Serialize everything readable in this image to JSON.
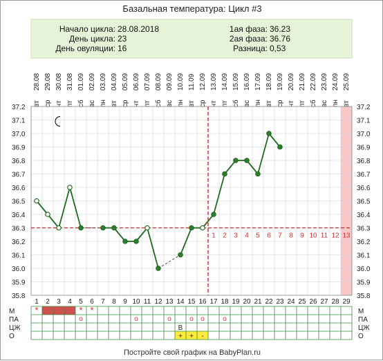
{
  "chart_data": {
    "type": "line",
    "title": "Базальная температура: Цикл #3",
    "info": {
      "left": [
        {
          "label": "Начало цикла:",
          "value": "28.08.2018"
        },
        {
          "label": "День цикла:",
          "value": "23"
        },
        {
          "label": "День овуляции:",
          "value": "16"
        }
      ],
      "right": [
        {
          "label": "1ая фаза:",
          "value": "36.23"
        },
        {
          "label": "2ая фаза:",
          "value": "36.76"
        },
        {
          "label": "Разница:",
          "value": "0,53"
        }
      ]
    },
    "dates": [
      "28.08",
      "29.08",
      "30.08",
      "31.08",
      "01.09",
      "02.09",
      "03.09",
      "04.09",
      "05.09",
      "06.09",
      "07.09",
      "08.09",
      "09.09",
      "10.09",
      "11.09",
      "12.09",
      "13.09",
      "14.09",
      "15.09",
      "16.09",
      "17.09",
      "18.09",
      "19.09",
      "20.09",
      "21.09",
      "22.09",
      "23.09",
      "24.09",
      "25.09"
    ],
    "weekdays": [
      "вт",
      "ср",
      "чт",
      "пт",
      "сб",
      "вс",
      "пн",
      "вт",
      "ср",
      "чт",
      "пт",
      "сб",
      "вс",
      "пн",
      "вт",
      "ср",
      "чт",
      "пт",
      "сб",
      "вс",
      "пн",
      "вт",
      "ср",
      "чт",
      "пт",
      "сб",
      "вс",
      "пн",
      "вт"
    ],
    "days": [
      "1",
      "2",
      "3",
      "4",
      "5",
      "6",
      "7",
      "8",
      "9",
      "10",
      "11",
      "12",
      "13",
      "14",
      "15",
      "16",
      "17",
      "18",
      "19",
      "20",
      "21",
      "22",
      "23",
      "24",
      "25",
      "26",
      "27",
      "28",
      "29"
    ],
    "y_ticks": [
      "37.2",
      "37.1",
      "37.0",
      "36.9",
      "36.8",
      "36.7",
      "36.6",
      "36.5",
      "36.4",
      "36.3",
      "36.2",
      "36.1",
      "36.0",
      "35.9",
      "35.8"
    ],
    "ylim": [
      35.8,
      37.2
    ],
    "temperatures": [
      {
        "day": 1,
        "t": 36.5,
        "open": true
      },
      {
        "day": 2,
        "t": 36.4,
        "open": true
      },
      {
        "day": 3,
        "t": 36.3,
        "open": true
      },
      {
        "day": 4,
        "t": 36.6,
        "open": true
      },
      {
        "day": 5,
        "t": 36.3,
        "open": false
      },
      {
        "day": 7,
        "t": 36.3,
        "open": false
      },
      {
        "day": 8,
        "t": 36.3,
        "open": false
      },
      {
        "day": 9,
        "t": 36.2,
        "open": false
      },
      {
        "day": 10,
        "t": 36.2,
        "open": false
      },
      {
        "day": 11,
        "t": 36.3,
        "open": true
      },
      {
        "day": 12,
        "t": 36.0,
        "open": false
      },
      {
        "day": 14,
        "t": 36.1,
        "open": false
      },
      {
        "day": 15,
        "t": 36.3,
        "open": false
      },
      {
        "day": 16,
        "t": 36.3,
        "open": true
      },
      {
        "day": 17,
        "t": 36.4,
        "open": false
      },
      {
        "day": 18,
        "t": 36.7,
        "open": false
      },
      {
        "day": 19,
        "t": 36.8,
        "open": false
      },
      {
        "day": 20,
        "t": 36.8,
        "open": false
      },
      {
        "day": 21,
        "t": 36.7,
        "open": false
      },
      {
        "day": 22,
        "t": 37.0,
        "open": false
      },
      {
        "day": 23,
        "t": 36.9,
        "open": false
      }
    ],
    "gap_after_days": [
      5,
      12
    ],
    "coverline": 36.3,
    "ovulation_day": 16,
    "highlight_day": 29,
    "post_ovulation_numbers": [
      "1",
      "2",
      "3",
      "4",
      "5",
      "6",
      "7",
      "8",
      "9",
      "10",
      "11",
      "12",
      "13"
    ],
    "moon_day": 3,
    "moon_temp": 37.1,
    "rows": {
      "labels": [
        "М",
        "ПА",
        "ЦЖ",
        "О"
      ],
      "m_fill_days": [
        2,
        3,
        4
      ],
      "m_star_days": [
        1,
        5,
        6
      ],
      "pa_marks": {
        "days": [
          5,
          10,
          13,
          15,
          16,
          18
        ],
        "symbol": "o"
      },
      "cj_marks": [
        {
          "day": 14,
          "text": "В"
        }
      ],
      "o_marks": [
        {
          "day": 14,
          "text": "+"
        },
        {
          "day": 15,
          "text": "+"
        },
        {
          "day": 16,
          "text": "-"
        }
      ]
    },
    "colors": {
      "line": "#1f6b1f",
      "point": "#2e7d32",
      "coverline": "#e02020",
      "ovulation": "#e02020",
      "highlight": "#f8c8c8",
      "info_bg": "#e6f3d8",
      "m_fill": "#d05050",
      "o_fill": "#ffeb3b",
      "grid": "#cfcfcf"
    }
  },
  "footer": "Постройте свой график на BabyPlan.ru"
}
